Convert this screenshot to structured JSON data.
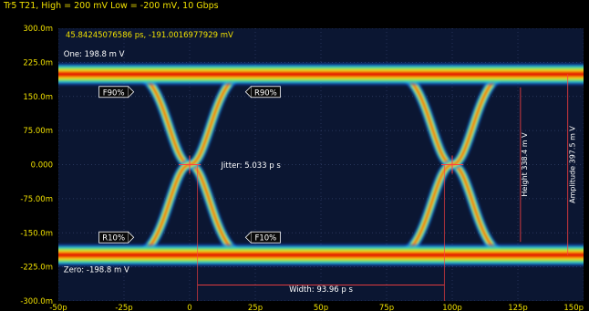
{
  "chart_data": {
    "type": "heatmap",
    "subtype": "eye-diagram",
    "title": "Tr5 T21, High = 200 mV Low = -200 mV, 10 Gbps",
    "cursor_readout": "45.84245076586 ps, -191.0016977929 mV",
    "xlabel": "",
    "ylabel": "",
    "x_unit": "ps",
    "y_unit": "V",
    "xlim": [
      -50,
      150
    ],
    "ylim": [
      -0.3,
      0.3
    ],
    "x_ticks": [
      {
        "value": -50,
        "label": "-50p"
      },
      {
        "value": -25,
        "label": "-25p"
      },
      {
        "value": 0,
        "label": "0"
      },
      {
        "value": 25,
        "label": "25p"
      },
      {
        "value": 50,
        "label": "50p"
      },
      {
        "value": 75,
        "label": "75p"
      },
      {
        "value": 100,
        "label": "100p"
      },
      {
        "value": 125,
        "label": "125p"
      },
      {
        "value": 150,
        "label": "150p"
      }
    ],
    "y_ticks": [
      {
        "value": 0.3,
        "label": "300.0m"
      },
      {
        "value": 0.225,
        "label": "225.0m"
      },
      {
        "value": 0.15,
        "label": "150.0m"
      },
      {
        "value": 0.075,
        "label": "75.00m"
      },
      {
        "value": 0,
        "label": "0.000"
      },
      {
        "value": -0.075,
        "label": "-75.00m"
      },
      {
        "value": -0.15,
        "label": "-150.0m"
      },
      {
        "value": -0.225,
        "label": "-225.0m"
      },
      {
        "value": -0.3,
        "label": "-300.0m"
      }
    ],
    "grid": true,
    "crossings_ps": [
      0,
      100
    ],
    "high_level_v": 0.1988,
    "low_level_v": -0.1988,
    "transition_half_width_ps": 21,
    "level_markers": [
      {
        "label": "F90%",
        "x": -22,
        "y": 0.16
      },
      {
        "label": "R90%",
        "x": 22,
        "y": 0.16
      },
      {
        "label": "R10%",
        "x": -22,
        "y": -0.16
      },
      {
        "label": "F10%",
        "x": 22,
        "y": -0.16
      }
    ],
    "annotations": {
      "one_level": "One: 198.8 m V",
      "zero_level": "Zero: -198.8 m V",
      "jitter": "Jitter: 5.033 p s",
      "width": "Width: 93.96 p s",
      "height": "Height 338.4 m V",
      "amplitude": "Amplitude 397.5 m V"
    },
    "width_span_ps": [
      3,
      97
    ],
    "height_span_v": [
      -0.17,
      0.17
    ],
    "amplitude_span_v": [
      -0.1988,
      0.1988
    ],
    "height_marker_x_ps": 126,
    "amplitude_marker_x_ps": 144,
    "colors": {
      "background": "#000000",
      "plot_background": "#0b1632",
      "grid": "#33416a",
      "axis_text": "#f0e000",
      "header_text": "#f0e000",
      "annotation_text": "#ffffff",
      "marker": "#ff4040",
      "heat_outer": "#1550e0",
      "heat_2": "#20c8e0",
      "heat_3": "#60e040",
      "heat_4": "#e8e020",
      "heat_5": "#ff8000",
      "heat_core": "#e00000"
    }
  }
}
